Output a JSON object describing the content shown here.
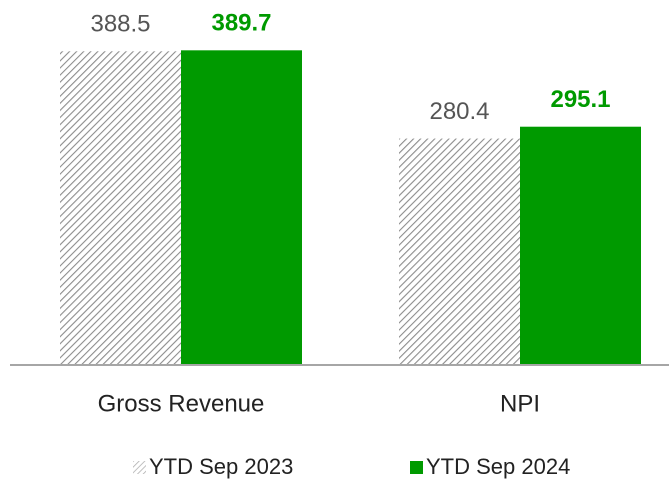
{
  "chart_data": {
    "type": "bar",
    "categories": [
      "Gross Revenue",
      "NPI"
    ],
    "series": [
      {
        "name": "YTD Sep 2023",
        "color": "#9a9a9a",
        "pattern": "hatch",
        "values": [
          388.5,
          280.4
        ]
      },
      {
        "name": "YTD Sep 2024",
        "color": "#009a00",
        "values": [
          389.7,
          295.1
        ]
      }
    ],
    "ylim": [
      0,
      400
    ],
    "legend": "bottom"
  }
}
